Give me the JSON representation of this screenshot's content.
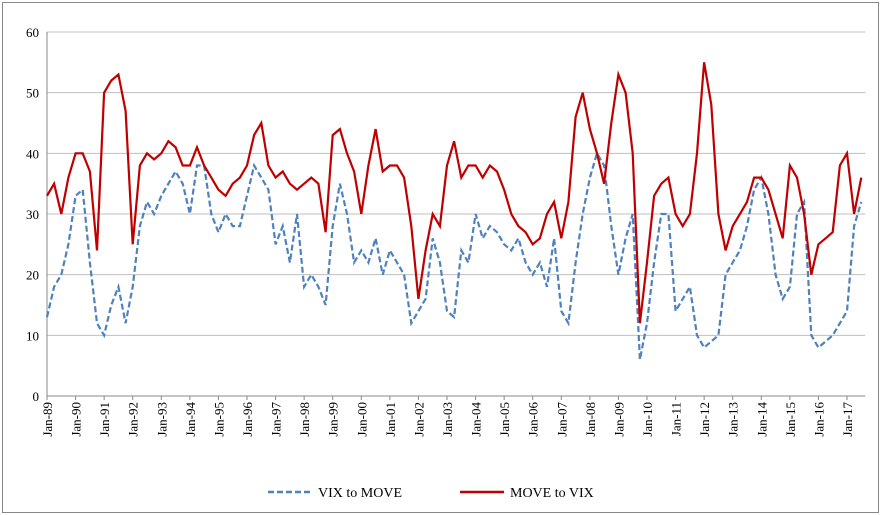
{
  "chart_data": {
    "type": "line",
    "categories": [
      "Jan-89",
      null,
      null,
      null,
      "Jan-90",
      null,
      null,
      null,
      "Jan-91",
      null,
      null,
      null,
      "Jan-92",
      null,
      null,
      null,
      "Jan-93",
      null,
      null,
      null,
      "Jan-94",
      null,
      null,
      null,
      "Jan-95",
      null,
      null,
      null,
      "Jan-96",
      null,
      null,
      null,
      "Jan-97",
      null,
      null,
      null,
      "Jan-98",
      null,
      null,
      null,
      "Jan-99",
      null,
      null,
      null,
      "Jan-00",
      null,
      null,
      null,
      "Jan-01",
      null,
      null,
      null,
      "Jan-02",
      null,
      null,
      null,
      "Jan-03",
      null,
      null,
      null,
      "Jan-04",
      null,
      null,
      null,
      "Jan-05",
      null,
      null,
      null,
      "Jan-06",
      null,
      null,
      null,
      "Jan-07",
      null,
      null,
      null,
      "Jan-08",
      null,
      null,
      null,
      "Jan-09",
      null,
      null,
      null,
      "Jan-10",
      null,
      null,
      null,
      "Jan-11",
      null,
      null,
      null,
      "Jan-12",
      null,
      null,
      null,
      "Jan-13",
      null,
      null,
      null,
      "Jan-14",
      null,
      null,
      null,
      "Jan-15",
      null,
      null,
      null,
      "Jan-16",
      null,
      null,
      null,
      "Jan-17",
      null,
      null
    ],
    "series": [
      {
        "name": "VIX to MOVE",
        "color": "#4f81bd",
        "dashed": true,
        "values": [
          13,
          18,
          20,
          25,
          33,
          34,
          22,
          12,
          10,
          15,
          18,
          12,
          18,
          28,
          32,
          30,
          33,
          35,
          37,
          35,
          30,
          38,
          38,
          30,
          27,
          30,
          28,
          28,
          33,
          38,
          36,
          34,
          25,
          28,
          22,
          30,
          18,
          20,
          18,
          15,
          28,
          35,
          30,
          22,
          24,
          22,
          26,
          20,
          24,
          22,
          20,
          12,
          14,
          16,
          26,
          22,
          14,
          13,
          24,
          22,
          30,
          26,
          28,
          27,
          25,
          24,
          26,
          22,
          20,
          22,
          18,
          26,
          14,
          12,
          22,
          30,
          36,
          40,
          38,
          28,
          20,
          26,
          30,
          6,
          12,
          22,
          30,
          30,
          14,
          16,
          18,
          10,
          8,
          9,
          10,
          20,
          22,
          24,
          28,
          34,
          36,
          30,
          20,
          16,
          18,
          30,
          32,
          10,
          8,
          9,
          10,
          12,
          14,
          28,
          32
        ]
      },
      {
        "name": "MOVE to VIX",
        "color": "#c00000",
        "dashed": false,
        "values": [
          33,
          35,
          30,
          36,
          40,
          40,
          37,
          24,
          50,
          52,
          53,
          47,
          25,
          38,
          40,
          39,
          40,
          42,
          41,
          38,
          38,
          41,
          38,
          36,
          34,
          33,
          35,
          36,
          38,
          43,
          45,
          38,
          36,
          37,
          35,
          34,
          35,
          36,
          35,
          27,
          43,
          44,
          40,
          37,
          30,
          38,
          44,
          37,
          38,
          38,
          36,
          28,
          16,
          24,
          30,
          28,
          38,
          42,
          36,
          38,
          38,
          36,
          38,
          37,
          34,
          30,
          28,
          27,
          25,
          26,
          30,
          32,
          26,
          32,
          46,
          50,
          44,
          40,
          35,
          45,
          53,
          50,
          40,
          12,
          22,
          33,
          35,
          36,
          30,
          28,
          30,
          40,
          55,
          48,
          30,
          24,
          28,
          30,
          32,
          36,
          36,
          34,
          30,
          26,
          38,
          36,
          30,
          20,
          25,
          26,
          27,
          38,
          40,
          30,
          36
        ]
      }
    ],
    "ylim": [
      0,
      60
    ],
    "yticks": [
      0,
      10,
      20,
      30,
      40,
      50,
      60
    ],
    "grid": true,
    "legend": "bottom"
  }
}
